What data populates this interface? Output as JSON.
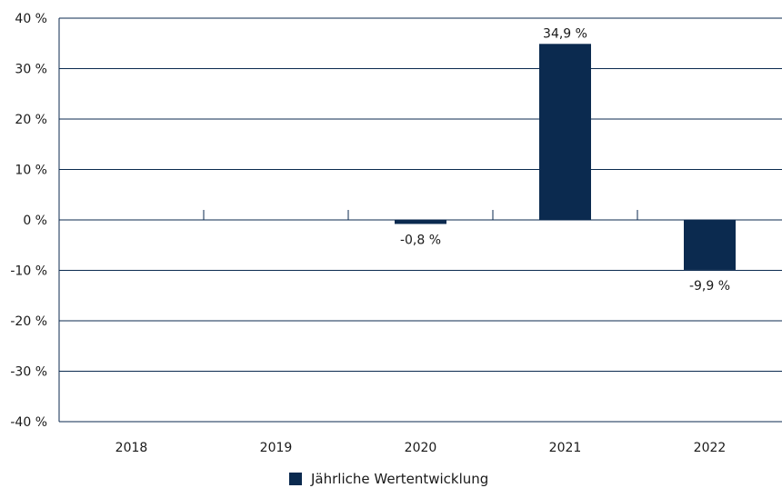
{
  "chart_data": {
    "type": "bar",
    "categories": [
      "2018",
      "2019",
      "2020",
      "2021",
      "2022"
    ],
    "series": [
      {
        "name": "Jährliche Wertentwicklung",
        "values": [
          null,
          null,
          -0.8,
          34.9,
          -9.9
        ],
        "labels": [
          "",
          "",
          "-0,8 %",
          "34,9 %",
          "-9,9 %"
        ]
      }
    ],
    "ylim": [
      -40,
      40
    ],
    "yticks": [
      40,
      30,
      20,
      10,
      0,
      -10,
      -20,
      -30,
      -40
    ],
    "ytick_labels": [
      "40 %",
      "30 %",
      "20 %",
      "10 %",
      "0 %",
      "-10 %",
      "-20 %",
      "-30 %",
      "-40 %"
    ],
    "grid": "horizontal",
    "legend_position": "bottom-center",
    "colors": {
      "bar": "#0b2a4f",
      "grid": "#0b2a4f",
      "axis": "#0b2a4f"
    }
  }
}
